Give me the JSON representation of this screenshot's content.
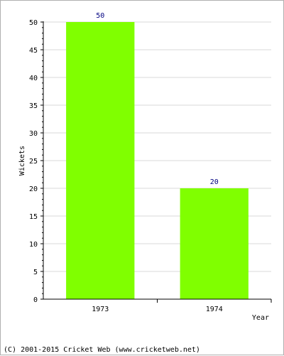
{
  "chart_data": {
    "type": "bar",
    "categories": [
      "1973",
      "1974"
    ],
    "series": [
      {
        "values": [
          50,
          20
        ]
      }
    ],
    "data_labels": [
      "50",
      "20"
    ],
    "xlabel": "Year",
    "ylabel": "Wickets",
    "ylim": [
      0,
      50
    ],
    "y_ticks": [
      0,
      5,
      10,
      15,
      20,
      25,
      30,
      35,
      40,
      45,
      50
    ],
    "grid": true,
    "legend": "none",
    "bar_color": "#80ff00",
    "label_color": "#000080"
  },
  "footer": {
    "credit": "(C) 2001-2015 Cricket Web (www.cricketweb.net)"
  }
}
